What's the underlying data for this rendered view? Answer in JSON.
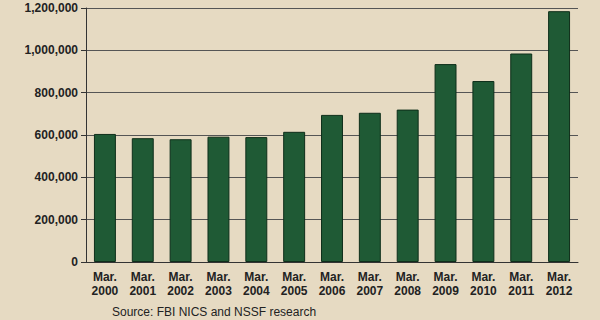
{
  "chart_data": {
    "type": "bar",
    "categories": [
      "Mar.\n2000",
      "Mar.\n2001",
      "Mar.\n2002",
      "Mar.\n2003",
      "Mar.\n2004",
      "Mar.\n2005",
      "Mar.\n2006",
      "Mar.\n2007",
      "Mar.\n2008",
      "Mar.\n2009",
      "Mar.\n2010",
      "Mar.\n2011",
      "Mar.\n2012"
    ],
    "values": [
      605000,
      585000,
      580000,
      592000,
      590000,
      615000,
      695000,
      705000,
      720000,
      935000,
      855000,
      985000,
      1185000
    ],
    "color": "#1f5a35",
    "ylim": [
      0,
      1200000
    ],
    "yticks": [
      0,
      {
        "value": 200000,
        "label": "200,000"
      },
      {
        "value": 400000,
        "label": "400,000"
      },
      {
        "value": 600000,
        "label": "600,000"
      },
      {
        "value": 800000,
        "label": "800,000"
      },
      {
        "value": 1000000,
        "label": "1,000,000"
      },
      {
        "value": 1200000,
        "label": "1,200,000"
      }
    ],
    "grid": true,
    "annotations": [
      "Source: FBI NICS and NSSF research"
    ]
  }
}
